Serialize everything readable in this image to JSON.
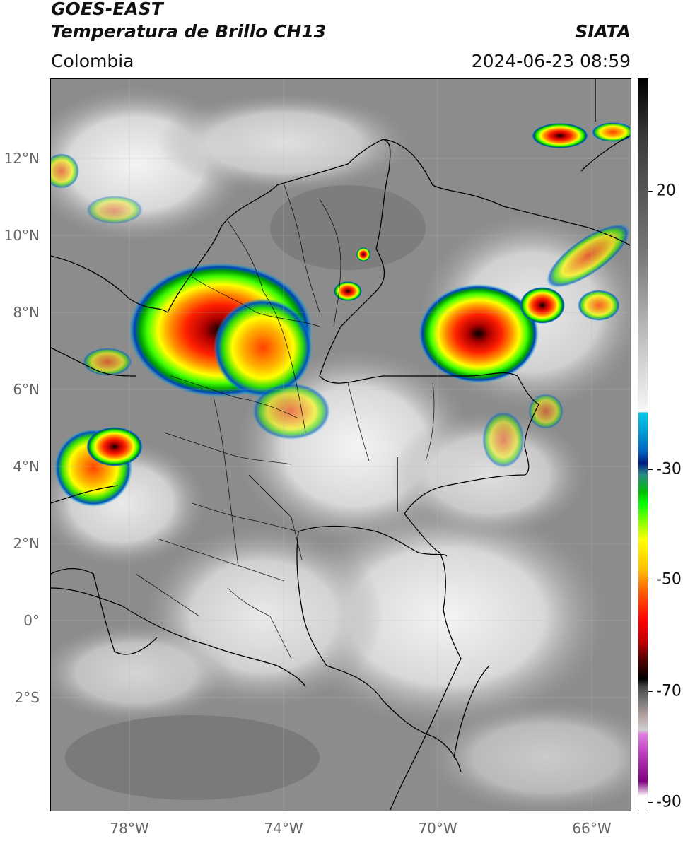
{
  "header": {
    "title_line1": "GOES-EAST",
    "title_line2": "Temperatura de Brillo CH13",
    "brand": "SIATA",
    "region": "Colombia",
    "datetime": "2024-06-23 08:59"
  },
  "map": {
    "lat_labels": [
      "12°N",
      "10°N",
      "8°N",
      "6°N",
      "4°N",
      "2°N",
      "0°",
      "2°S"
    ],
    "lat_values": [
      12,
      10,
      8,
      6,
      4,
      2,
      0,
      -2
    ],
    "lon_labels": [
      "78°W",
      "74°W",
      "70°W",
      "66°W"
    ],
    "lon_values": [
      -78,
      -74,
      -70,
      -66
    ],
    "extent": {
      "lon_min": -80,
      "lon_max": -65,
      "lat_min": -5,
      "lat_max": 14
    },
    "gridlines": true
  },
  "colorbar": {
    "ticks": [
      "20",
      "-30",
      "-50",
      "-70",
      "-90"
    ],
    "tick_values": [
      20,
      -30,
      -50,
      -70,
      -90
    ],
    "range": [
      -95,
      40
    ]
  }
}
